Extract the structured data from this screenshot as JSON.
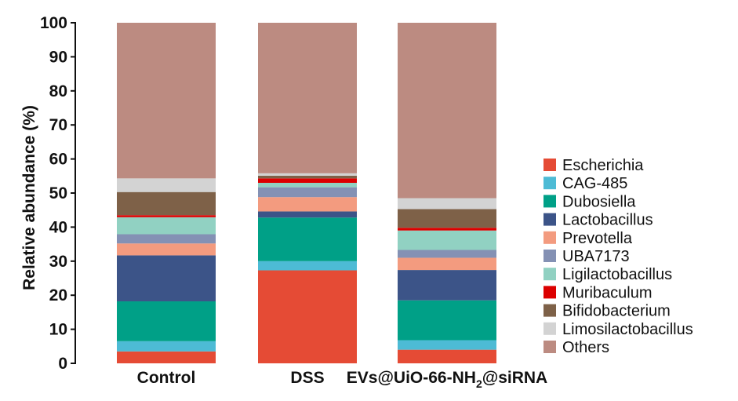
{
  "chart_data": {
    "type": "bar",
    "stacked": true,
    "title": "",
    "xlabel": "",
    "ylabel": "Relative abundance (%)",
    "ylim": [
      0,
      100
    ],
    "yticks": [
      "0",
      "10",
      "20",
      "30",
      "40",
      "50",
      "60",
      "70",
      "80",
      "90",
      "100"
    ],
    "categories": [
      {
        "main": "Control",
        "sub": "",
        "tail": ""
      },
      {
        "main": "DSS",
        "sub": "",
        "tail": ""
      },
      {
        "main": "EVs@UiO-66-NH",
        "sub": "2",
        "tail": "@siRNA"
      }
    ],
    "series": [
      {
        "name": "Escherichia",
        "color": "#E54B35",
        "values": [
          3.5,
          27.3,
          4.0
        ]
      },
      {
        "name": "CAG-485",
        "color": "#4DBBD5",
        "values": [
          3.0,
          2.7,
          2.8
        ]
      },
      {
        "name": "Dubosiella",
        "color": "#00A087",
        "values": [
          11.7,
          12.8,
          11.7
        ]
      },
      {
        "name": "Lactobacillus",
        "color": "#3C5488",
        "values": [
          13.5,
          1.8,
          8.9
        ]
      },
      {
        "name": "Prevotella",
        "color": "#F39B7F",
        "values": [
          3.5,
          4.2,
          3.6
        ]
      },
      {
        "name": "UBA7173",
        "color": "#8491B4",
        "values": [
          2.7,
          2.9,
          2.3
        ]
      },
      {
        "name": "Ligilactobacillus",
        "color": "#91D1C2",
        "values": [
          5.0,
          1.3,
          5.7
        ]
      },
      {
        "name": "Muribaculum",
        "color": "#DC0000",
        "values": [
          0.6,
          1.3,
          0.8
        ]
      },
      {
        "name": "Bifidobacterium",
        "color": "#7E6148",
        "values": [
          6.8,
          0.8,
          5.5
        ]
      },
      {
        "name": "Limosilactobacillus",
        "color": "#D3D3D3",
        "values": [
          4.0,
          0.7,
          3.2
        ]
      },
      {
        "name": "Others",
        "color": "#BC8B81",
        "values": [
          45.7,
          44.2,
          51.5
        ]
      }
    ],
    "legend_position": "right",
    "grid": false
  }
}
